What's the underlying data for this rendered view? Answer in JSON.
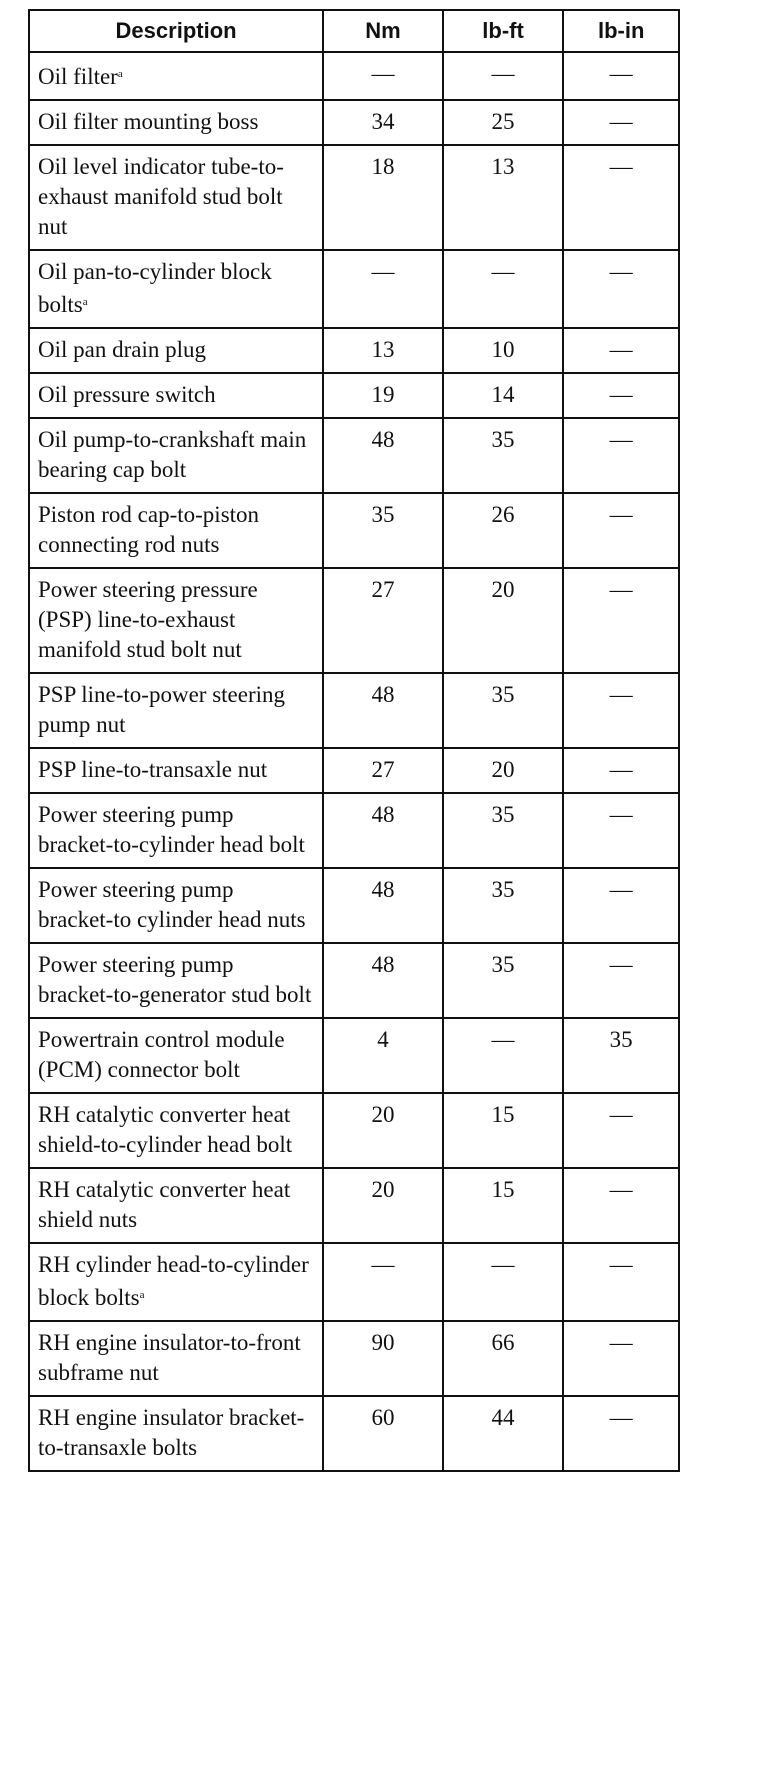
{
  "columns": [
    "Description",
    "Nm",
    "lb-ft",
    "lb-in"
  ],
  "rows": [
    {
      "description": "Oil filter",
      "note": "a",
      "nm": "—",
      "lbft": "—",
      "lbin": "—"
    },
    {
      "description": "Oil filter mounting boss",
      "note": "",
      "nm": "34",
      "lbft": "25",
      "lbin": "—"
    },
    {
      "description": "Oil level indicator tube-to-exhaust manifold stud bolt nut",
      "note": "",
      "nm": "18",
      "lbft": "13",
      "lbin": "—"
    },
    {
      "description": "Oil pan-to-cylinder block bolts",
      "note": "a",
      "nm": "—",
      "lbft": "—",
      "lbin": "—"
    },
    {
      "description": "Oil pan drain plug",
      "note": "",
      "nm": "13",
      "lbft": "10",
      "lbin": "—"
    },
    {
      "description": "Oil pressure switch",
      "note": "",
      "nm": "19",
      "lbft": "14",
      "lbin": "—"
    },
    {
      "description": "Oil pump-to-crankshaft main bearing cap bolt",
      "note": "",
      "nm": "48",
      "lbft": "35",
      "lbin": "—"
    },
    {
      "description": "Piston rod cap-to-piston connecting rod nuts",
      "note": "",
      "nm": "35",
      "lbft": "26",
      "lbin": "—"
    },
    {
      "description": "Power steering pressure (PSP) line-to-exhaust manifold stud bolt nut",
      "note": "",
      "nm": "27",
      "lbft": "20",
      "lbin": "—"
    },
    {
      "description": "PSP line-to-power steering pump nut",
      "note": "",
      "nm": "48",
      "lbft": "35",
      "lbin": "—"
    },
    {
      "description": "PSP line-to-transaxle nut",
      "note": "",
      "nm": "27",
      "lbft": "20",
      "lbin": "—"
    },
    {
      "description": "Power steering pump bracket-to-cylinder head bolt",
      "note": "",
      "nm": "48",
      "lbft": "35",
      "lbin": "—"
    },
    {
      "description": "Power steering pump bracket-to cylinder head nuts",
      "note": "",
      "nm": "48",
      "lbft": "35",
      "lbin": "—"
    },
    {
      "description": "Power steering pump bracket-to-generator stud bolt",
      "note": "",
      "nm": "48",
      "lbft": "35",
      "lbin": "—"
    },
    {
      "description": "Powertrain control module (PCM) connector bolt",
      "note": "",
      "nm": "4",
      "lbft": "—",
      "lbin": "35"
    },
    {
      "description": "RH catalytic converter heat shield-to-cylinder head bolt",
      "note": "",
      "nm": "20",
      "lbft": "15",
      "lbin": "—"
    },
    {
      "description": "RH catalytic converter heat shield nuts",
      "note": "",
      "nm": "20",
      "lbft": "15",
      "lbin": "—"
    },
    {
      "description": "RH cylinder head-to-cylinder block bolts",
      "note": "a",
      "nm": "—",
      "lbft": "—",
      "lbin": "—"
    },
    {
      "description": "RH engine insulator-to-front subframe nut",
      "note": "",
      "nm": "90",
      "lbft": "66",
      "lbin": "—"
    },
    {
      "description": "RH engine insulator bracket-to-transaxle bolts",
      "note": "",
      "nm": "60",
      "lbft": "44",
      "lbin": "—"
    }
  ]
}
